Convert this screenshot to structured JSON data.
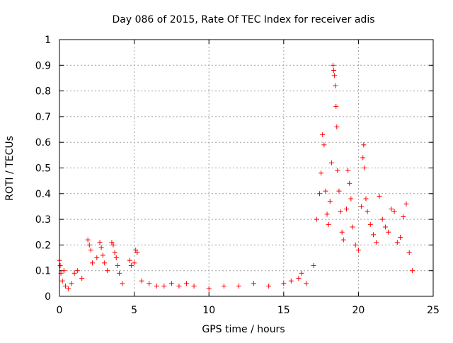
{
  "chart_data": {
    "type": "scatter",
    "title": "Day 086 of 2015, Rate Of TEC Index for receiver adis",
    "xlabel": "GPS time / hours",
    "ylabel": "ROTI / TECUs",
    "xlim": [
      0,
      25
    ],
    "ylim": [
      0,
      1
    ],
    "xticks": [
      "0",
      "5",
      "10",
      "15",
      "20",
      "25"
    ],
    "yticks": [
      "0",
      "0.1",
      "0.2",
      "0.3",
      "0.4",
      "0.5",
      "0.6",
      "0.7",
      "0.8",
      "0.9",
      "1"
    ],
    "grid": true,
    "marker": "+",
    "color": "#ff0000",
    "series": [
      {
        "name": "ROTI",
        "points": [
          [
            0.0,
            0.14
          ],
          [
            0.05,
            0.12
          ],
          [
            0.1,
            0.09
          ],
          [
            0.2,
            0.06
          ],
          [
            0.3,
            0.1
          ],
          [
            0.4,
            0.04
          ],
          [
            0.6,
            0.03
          ],
          [
            0.8,
            0.05
          ],
          [
            1.0,
            0.09
          ],
          [
            1.2,
            0.1
          ],
          [
            1.5,
            0.07
          ],
          [
            1.9,
            0.22
          ],
          [
            2.0,
            0.2
          ],
          [
            2.1,
            0.18
          ],
          [
            2.2,
            0.13
          ],
          [
            2.5,
            0.15
          ],
          [
            2.7,
            0.21
          ],
          [
            2.8,
            0.19
          ],
          [
            2.9,
            0.16
          ],
          [
            3.0,
            0.13
          ],
          [
            3.2,
            0.1
          ],
          [
            3.5,
            0.21
          ],
          [
            3.6,
            0.2
          ],
          [
            3.7,
            0.17
          ],
          [
            3.8,
            0.15
          ],
          [
            3.9,
            0.12
          ],
          [
            4.0,
            0.09
          ],
          [
            4.2,
            0.05
          ],
          [
            4.7,
            0.14
          ],
          [
            4.8,
            0.12
          ],
          [
            5.0,
            0.13
          ],
          [
            5.1,
            0.18
          ],
          [
            5.2,
            0.17
          ],
          [
            5.5,
            0.06
          ],
          [
            6.0,
            0.05
          ],
          [
            6.5,
            0.04
          ],
          [
            7.0,
            0.04
          ],
          [
            7.5,
            0.05
          ],
          [
            8.0,
            0.04
          ],
          [
            8.5,
            0.05
          ],
          [
            9.0,
            0.04
          ],
          [
            10.0,
            0.03
          ],
          [
            11.0,
            0.04
          ],
          [
            12.0,
            0.04
          ],
          [
            13.0,
            0.05
          ],
          [
            14.0,
            0.04
          ],
          [
            15.0,
            0.05
          ],
          [
            15.5,
            0.06
          ],
          [
            16.0,
            0.07
          ],
          [
            16.2,
            0.09
          ],
          [
            16.5,
            0.05
          ],
          [
            17.0,
            0.12
          ],
          [
            17.2,
            0.3
          ],
          [
            17.4,
            0.4
          ],
          [
            17.5,
            0.48
          ],
          [
            17.6,
            0.63
          ],
          [
            17.7,
            0.59
          ],
          [
            17.8,
            0.41
          ],
          [
            17.9,
            0.32
          ],
          [
            18.0,
            0.28
          ],
          [
            18.1,
            0.37
          ],
          [
            18.2,
            0.52
          ],
          [
            18.3,
            0.9
          ],
          [
            18.35,
            0.88
          ],
          [
            18.4,
            0.86
          ],
          [
            18.45,
            0.82
          ],
          [
            18.5,
            0.74
          ],
          [
            18.55,
            0.66
          ],
          [
            18.6,
            0.49
          ],
          [
            18.7,
            0.41
          ],
          [
            18.8,
            0.33
          ],
          [
            18.9,
            0.25
          ],
          [
            19.0,
            0.22
          ],
          [
            19.2,
            0.34
          ],
          [
            19.3,
            0.49
          ],
          [
            19.4,
            0.44
          ],
          [
            19.5,
            0.38
          ],
          [
            19.6,
            0.27
          ],
          [
            19.8,
            0.2
          ],
          [
            20.0,
            0.18
          ],
          [
            20.2,
            0.35
          ],
          [
            20.3,
            0.54
          ],
          [
            20.35,
            0.59
          ],
          [
            20.4,
            0.5
          ],
          [
            20.5,
            0.38
          ],
          [
            20.6,
            0.33
          ],
          [
            20.8,
            0.28
          ],
          [
            21.0,
            0.24
          ],
          [
            21.2,
            0.21
          ],
          [
            21.4,
            0.39
          ],
          [
            21.6,
            0.3
          ],
          [
            21.8,
            0.27
          ],
          [
            22.0,
            0.25
          ],
          [
            22.2,
            0.34
          ],
          [
            22.4,
            0.33
          ],
          [
            22.6,
            0.21
          ],
          [
            22.8,
            0.23
          ],
          [
            23.0,
            0.31
          ],
          [
            23.2,
            0.36
          ],
          [
            23.4,
            0.17
          ],
          [
            23.6,
            0.1
          ]
        ]
      }
    ]
  }
}
